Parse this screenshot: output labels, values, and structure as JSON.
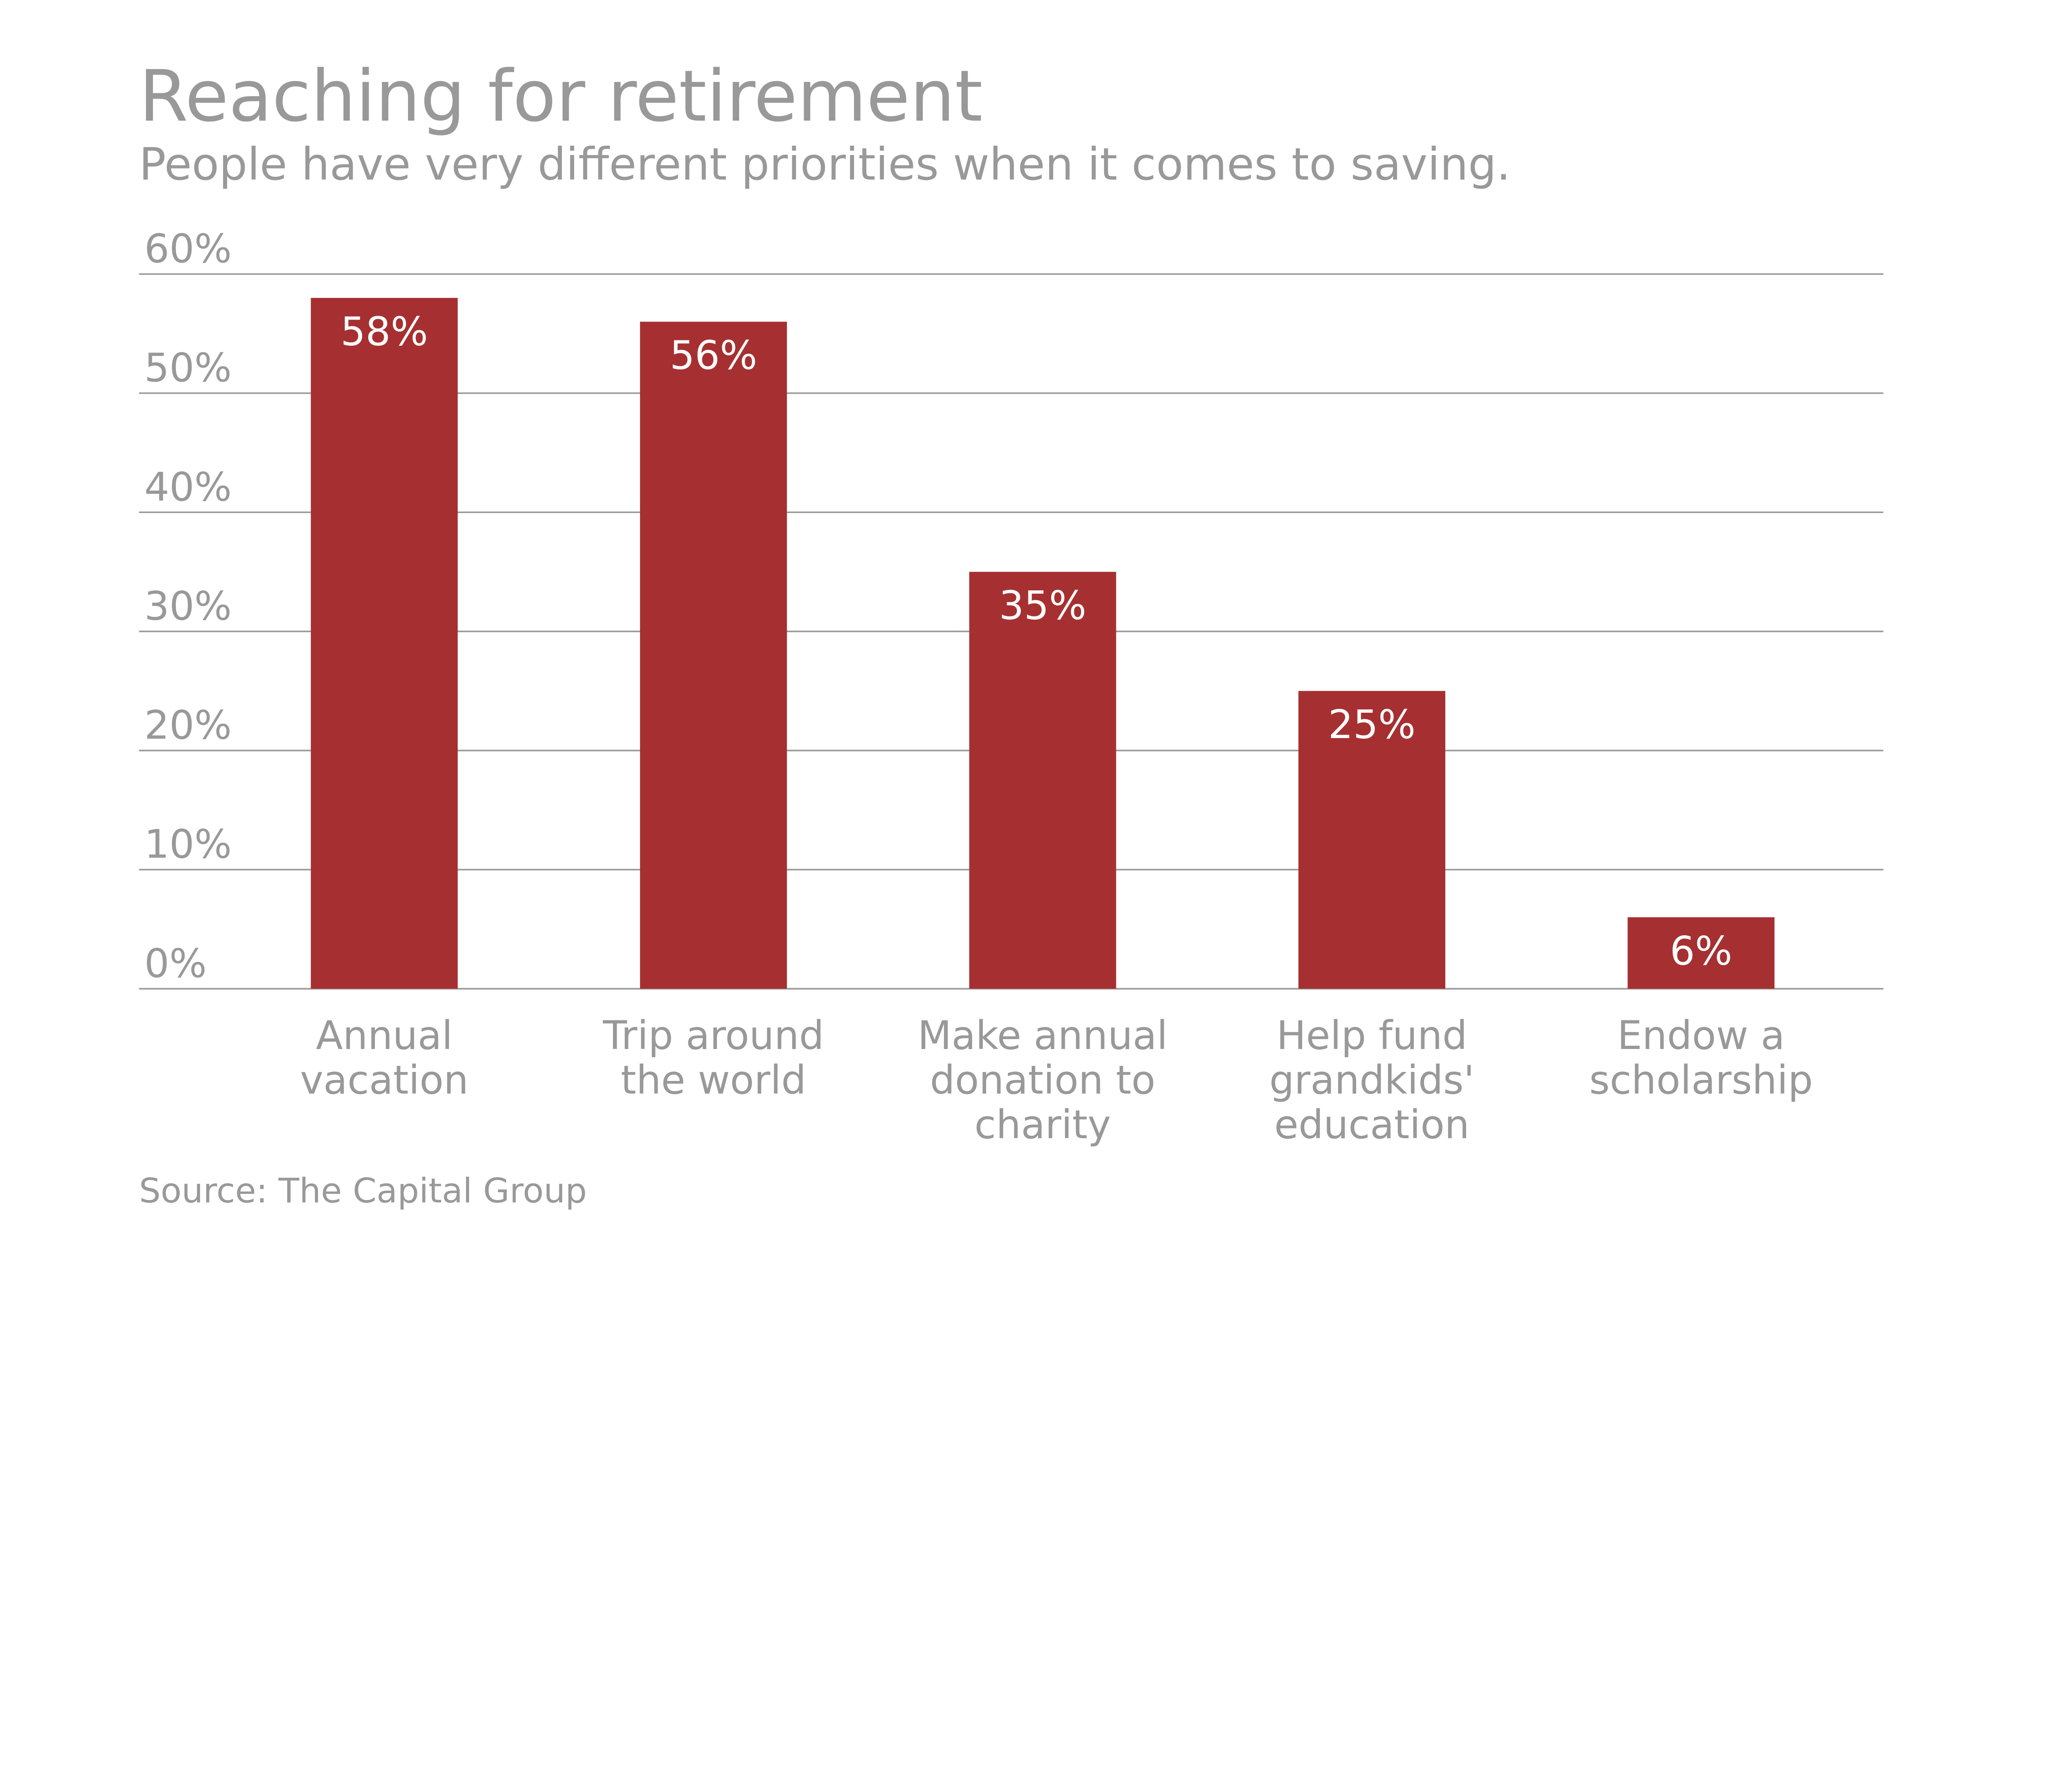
{
  "chart_data": {
    "type": "bar",
    "title": "Reaching for retirement",
    "subtitle": "People have very different priorities when it comes to saving.",
    "source": "Source: The Capital Group",
    "categories": [
      [
        "Annual",
        "vacation"
      ],
      [
        "Trip around",
        "the world"
      ],
      [
        "Make annual",
        "donation to",
        "charity"
      ],
      [
        "Help fund",
        "grandkids'",
        "education"
      ],
      [
        "Endow a",
        "scholarship"
      ]
    ],
    "values": [
      58,
      56,
      35,
      25,
      6
    ],
    "data_labels": [
      "58%",
      "56%",
      "35%",
      "25%",
      "6%"
    ],
    "ylim": [
      0,
      60
    ],
    "yticks": [
      0,
      10,
      20,
      30,
      40,
      50,
      60
    ],
    "ytick_labels": [
      "0%",
      "10%",
      "20%",
      "30%",
      "40%",
      "50%",
      "60%"
    ],
    "xlabel": "",
    "ylabel": "",
    "grid": true,
    "colors": {
      "bar": "#A63031",
      "text": "#999999",
      "label": "#FFFFFF"
    }
  }
}
